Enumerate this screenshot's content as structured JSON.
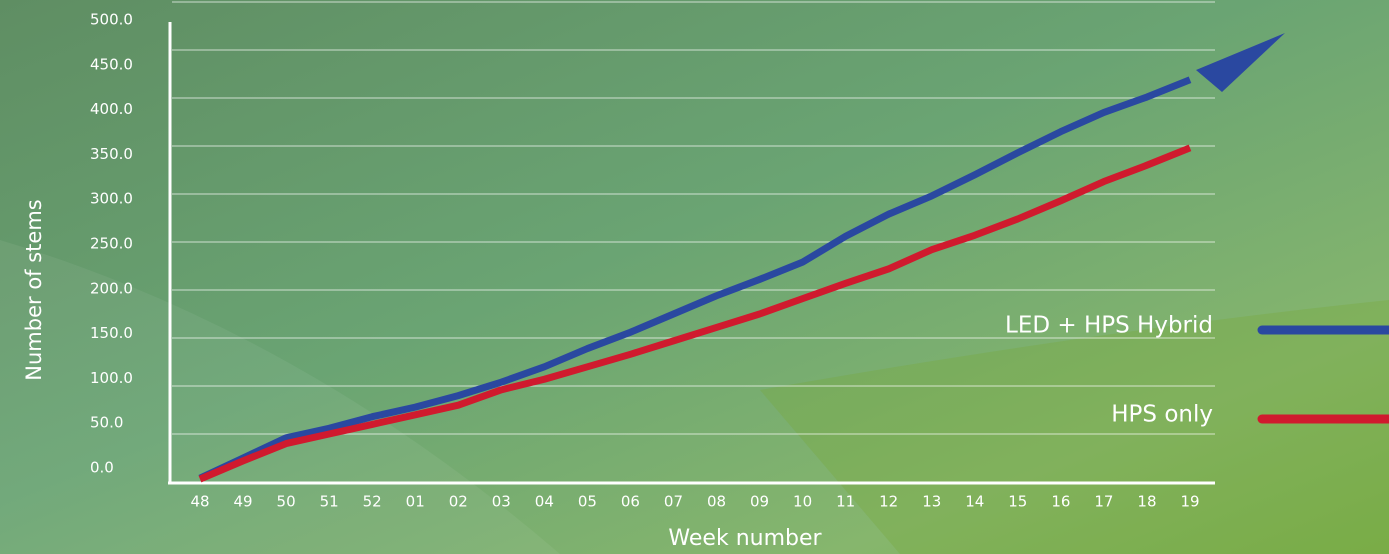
{
  "chart_data": {
    "type": "line",
    "x_label": "Week number",
    "y_label": "Number of stems",
    "categories": [
      "48",
      "49",
      "50",
      "51",
      "52",
      "01",
      "02",
      "03",
      "04",
      "05",
      "06",
      "07",
      "08",
      "09",
      "10",
      "11",
      "12",
      "13",
      "14",
      "15",
      "16",
      "17",
      "18",
      "19"
    ],
    "series": [
      {
        "name": "LED + HPS Hybrid",
        "color": "#2a48a0",
        "values": [
          4,
          25,
          46,
          56,
          68,
          78,
          90,
          104,
          120,
          139,
          156,
          175,
          194,
          211,
          229,
          256,
          279,
          298,
          320,
          343,
          365,
          385,
          401,
          419
        ]
      },
      {
        "name": "HPS only",
        "color": "#d01a2e",
        "values": [
          3,
          22,
          40,
          50,
          60,
          70,
          80,
          96,
          107,
          120,
          133,
          147,
          161,
          175,
          191,
          207,
          222,
          242,
          257,
          274,
          293,
          313,
          330,
          348
        ]
      }
    ],
    "ylim": [
      0,
      500
    ],
    "yticks": [
      {
        "value": 0,
        "label": "0.0"
      },
      {
        "value": 50,
        "label": "50.0"
      },
      {
        "value": 100,
        "label": "100.0"
      },
      {
        "value": 150,
        "label": "150.0"
      },
      {
        "value": 200,
        "label": "200.0"
      },
      {
        "value": 250,
        "label": "250.0"
      },
      {
        "value": 300,
        "label": "300.0"
      },
      {
        "value": 350,
        "label": "350.0"
      },
      {
        "value": 400,
        "label": "400.0"
      },
      {
        "value": 450,
        "label": "450.0"
      },
      {
        "value": 500,
        "label": "500.0"
      }
    ],
    "grid": true
  }
}
